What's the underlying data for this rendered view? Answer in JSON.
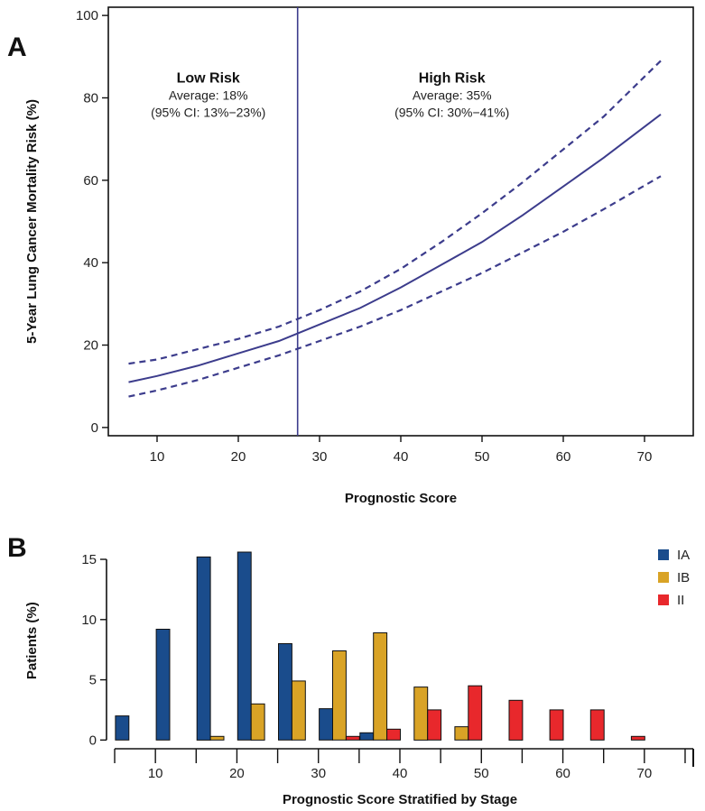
{
  "chart_data": [
    {
      "panel": "A",
      "type": "line",
      "xlabel": "Prognostic Score",
      "ylabel": "5-Year Lung Cancer Mortality Risk (%)",
      "xlim": [
        4,
        76
      ],
      "ylim": [
        -2,
        102
      ],
      "xticks": [
        10,
        20,
        30,
        40,
        50,
        60,
        70
      ],
      "yticks": [
        0,
        20,
        40,
        60,
        80,
        100
      ],
      "grid": false,
      "cutoff": 27.3,
      "line_color": "#3c3c8c",
      "series": [
        {
          "role": "estimate",
          "style": "solid",
          "x": [
            6.5,
            10,
            15,
            20,
            25,
            30,
            35,
            40,
            45,
            50,
            55,
            60,
            65,
            72
          ],
          "y": [
            11,
            12.5,
            15,
            18,
            21,
            25,
            29,
            34,
            39.5,
            45,
            51.5,
            58.5,
            65.5,
            76
          ]
        },
        {
          "role": "upper 95% CI",
          "style": "dashed",
          "x": [
            6.5,
            10,
            15,
            20,
            25,
            30,
            35,
            40,
            45,
            50,
            55,
            60,
            65,
            72
          ],
          "y": [
            15.5,
            16.5,
            19,
            21.5,
            24.5,
            28.5,
            33,
            38.5,
            45,
            52,
            59.5,
            67.5,
            75.5,
            89
          ]
        },
        {
          "role": "lower 95% CI",
          "style": "dashed",
          "x": [
            6.5,
            10,
            15,
            20,
            25,
            30,
            35,
            40,
            45,
            50,
            55,
            60,
            65,
            72
          ],
          "y": [
            7.5,
            9,
            11.5,
            14.5,
            17.5,
            21,
            24.5,
            28.5,
            33,
            37.5,
            42.5,
            47.5,
            53,
            61
          ]
        }
      ],
      "annotations": [
        {
          "title": "Low Risk",
          "line1": "Average: 18%",
          "line2": "(95% CI: 13%−23%)",
          "x": 16.3,
          "y": 80
        },
        {
          "title": "High Risk",
          "line1": "Average: 35%",
          "line2": "(95% CI: 30%−41%)",
          "x": 46.3,
          "y": 80
        }
      ]
    },
    {
      "panel": "B",
      "type": "bar",
      "xlabel": "Prognostic Score Stratified by Stage",
      "ylabel": "Patients (%)",
      "xlim": [
        4,
        76
      ],
      "ylim": [
        -0.5,
        16.5
      ],
      "xticks": [
        10,
        20,
        30,
        40,
        50,
        60,
        70
      ],
      "yticks": [
        0,
        5,
        10,
        15
      ],
      "bin_edges": [
        5,
        10,
        15,
        20,
        25,
        30,
        35,
        40,
        45,
        50,
        55,
        60,
        65,
        70
      ],
      "legend_position": "top-right",
      "series": [
        {
          "name": "IA",
          "color": "#1a4c8c",
          "values": [
            2.0,
            9.2,
            15.2,
            15.6,
            8.0,
            2.6,
            0.6,
            0,
            0,
            0,
            0,
            0,
            0,
            0
          ]
        },
        {
          "name": "IB",
          "color": "#d9a326",
          "values": [
            0,
            0,
            0.3,
            3.0,
            4.9,
            7.4,
            8.9,
            4.4,
            1.1,
            0,
            0,
            0,
            0,
            0
          ]
        },
        {
          "name": "II",
          "color": "#e8282c",
          "values": [
            0,
            0,
            0,
            0,
            0,
            0.3,
            0.9,
            2.5,
            4.5,
            3.3,
            2.5,
            2.5,
            0.3,
            0
          ]
        }
      ]
    }
  ],
  "panels": {
    "a_label": "A",
    "b_label": "B"
  }
}
